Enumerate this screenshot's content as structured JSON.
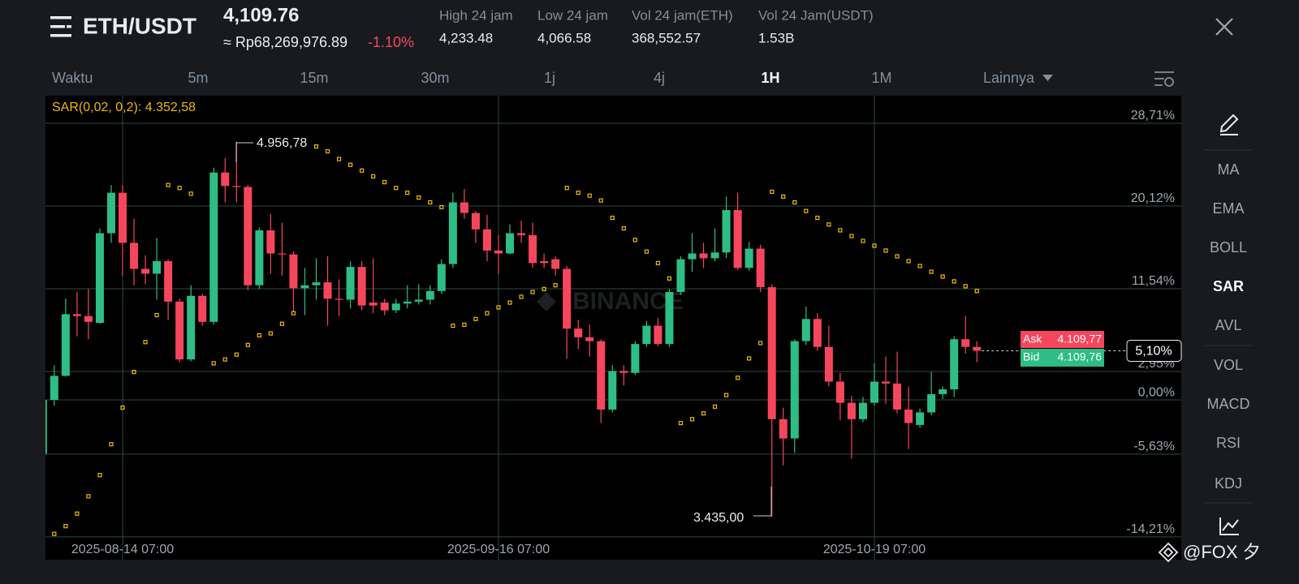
{
  "header": {
    "pair": "ETH/USDT",
    "price": "4,109.76",
    "fiat_price": "≈ Rp68,269,976.89",
    "change": "-1.10%"
  },
  "stats": [
    {
      "label": "High 24 jam",
      "value": "4,233.48"
    },
    {
      "label": "Low 24 jam",
      "value": "4,066.58"
    },
    {
      "label": "Vol 24 jam(ETH)",
      "value": "368,552.57"
    },
    {
      "label": "Vol 24 Jam(USDT)",
      "value": "1.53B"
    }
  ],
  "intervals": [
    "Waktu",
    "5m",
    "15m",
    "30m",
    "1j",
    "4j",
    "1H",
    "1M",
    "Lainnya"
  ],
  "sidebar": [
    "MA",
    "EMA",
    "BOLL",
    "SAR",
    "AVL",
    "VOL",
    "MACD",
    "RSI",
    "KDJ"
  ],
  "watermark": "BINANCE",
  "footer": "@FOX 夕",
  "chart_data": {
    "type": "candlestick",
    "indicator_label": "SAR(0,02, 0,2): 4.352,58",
    "categories": [
      null,
      null,
      null,
      null,
      null,
      null,
      null,
      "2025-08-14 07:00",
      null,
      null,
      null,
      null,
      null,
      null,
      null,
      null,
      null,
      null,
      null,
      null,
      null,
      null,
      null,
      null,
      null,
      null,
      null,
      null,
      null,
      null,
      null,
      null,
      null,
      null,
      null,
      null,
      null,
      null,
      null,
      null,
      "2025-09-16 07:00",
      null,
      null,
      null,
      null,
      null,
      null,
      null,
      null,
      null,
      null,
      null,
      null,
      null,
      null,
      null,
      null,
      null,
      null,
      null,
      null,
      null,
      null,
      null,
      null,
      null,
      null,
      null,
      null,
      null,
      null,
      null,
      null,
      "2025-10-19 07:00",
      null,
      null,
      null,
      null,
      null,
      null,
      null,
      null,
      null
    ],
    "open": [
      -5.6,
      0,
      2.5,
      8.9,
      8.7,
      8.0,
      17.3,
      21.5,
      16.3,
      13.6,
      13.1,
      14.4,
      10.2,
      4.2,
      10.8,
      8.1,
      23.6,
      22.2,
      22.1,
      11.9,
      17.6,
      15.2,
      15.1,
      11.6,
      11.9,
      12.2,
      10.5,
      10.4,
      13.8,
      10.1,
      10.1,
      9.3,
      10.0,
      10.2,
      10.4,
      11.3,
      14.1,
      20.5,
      19.4,
      17.7,
      15.5,
      15.2,
      17.3,
      17.1,
      14.4,
      14.6,
      13.6,
      7.4,
      6.5,
      6.1,
      -1.0,
      3.0,
      2.8,
      5.8,
      7.7,
      5.8,
      11.2,
      14.6,
      15.2,
      14.7,
      15.3,
      19.7,
      13.7,
      15.7,
      11.7,
      -2.0,
      -4.0,
      6.1,
      8.4,
      5.5,
      1.9,
      -0.3,
      -2.0,
      -0.3,
      1.9,
      1.7,
      -1.0,
      -2.6,
      -1.3,
      0.6,
      1.1,
      6.3,
      5.5
    ],
    "high": [
      0.3,
      3.6,
      10.5,
      11.2,
      11.5,
      17.8,
      22.3,
      22.3,
      18.8,
      15.0,
      16.8,
      14.6,
      10.5,
      11.9,
      11.0,
      24.1,
      25.1,
      26.8,
      22.3,
      17.9,
      19.3,
      18.4,
      15.4,
      13.7,
      14.7,
      14.9,
      12.5,
      14.4,
      14.4,
      14.7,
      10.5,
      10.5,
      11.9,
      12.0,
      11.9,
      14.6,
      21.5,
      21.9,
      19.6,
      19.2,
      17.1,
      18.2,
      18.6,
      18.4,
      15.2,
      14.9,
      13.9,
      8.3,
      7.8,
      6.3,
      3.6,
      3.6,
      6.1,
      8.2,
      8.5,
      11.5,
      14.9,
      17.3,
      16.3,
      17.8,
      21.1,
      21.5,
      16.4,
      16.1,
      12.0,
      -0.8,
      6.3,
      9.7,
      9.0,
      7.7,
      2.8,
      0.4,
      0.3,
      3.8,
      4.5,
      5.0,
      1.4,
      -0.9,
      2.9,
      1.4,
      6.6,
      8.7,
      6.1
    ],
    "low": [
      -5.8,
      -0.6,
      2.4,
      6.6,
      6.3,
      7.9,
      16.3,
      12.9,
      11.9,
      12.0,
      10.4,
      8.3,
      3.9,
      4.0,
      7.7,
      7.8,
      20.5,
      20.5,
      11.4,
      11.5,
      13.1,
      12.9,
      9.1,
      8.8,
      10.4,
      7.7,
      8.7,
      9.5,
      9.3,
      9.0,
      8.8,
      9.0,
      9.5,
      9.9,
      9.9,
      11.0,
      13.7,
      18.8,
      16.3,
      14.4,
      13.1,
      15.1,
      16.3,
      13.7,
      13.7,
      12.9,
      4.3,
      5.3,
      4.5,
      -2.4,
      -1.3,
      1.5,
      2.6,
      5.5,
      5.6,
      5.5,
      10.9,
      13.3,
      13.7,
      14.4,
      14.7,
      13.5,
      13.4,
      11.2,
      -12.1,
      -6.8,
      -5.5,
      5.7,
      5.1,
      1.4,
      -2.1,
      -6.1,
      -2.3,
      -0.6,
      -0.4,
      -1.4,
      -5.1,
      -2.9,
      -1.6,
      0.1,
      0.3,
      4.8,
      3.9
    ],
    "close": [
      0,
      2.5,
      8.9,
      8.7,
      8.1,
      17.3,
      21.5,
      16.3,
      13.6,
      13.1,
      14.4,
      10.2,
      4.2,
      10.8,
      8.1,
      23.6,
      22.2,
      22.1,
      11.9,
      17.6,
      15.2,
      15.1,
      11.6,
      11.9,
      12.2,
      10.5,
      10.4,
      13.8,
      9.8,
      9.8,
      9.3,
      10.0,
      10.2,
      10.4,
      11.3,
      14.1,
      20.5,
      19.4,
      17.7,
      15.5,
      15.2,
      17.3,
      17.1,
      14.2,
      14.2,
      13.6,
      7.4,
      6.5,
      6.1,
      -1.0,
      3.0,
      2.8,
      5.8,
      7.7,
      5.8,
      11.2,
      14.6,
      15.2,
      14.7,
      15.3,
      19.7,
      13.7,
      15.7,
      11.7,
      -2.0,
      -4.0,
      6.1,
      8.4,
      5.5,
      1.9,
      -0.3,
      -2.0,
      -0.3,
      1.9,
      1.7,
      -1.0,
      -2.4,
      -1.3,
      0.6,
      1.1,
      6.3,
      5.5,
      5.1
    ],
    "sar_values": [
      null,
      -13.9,
      -13.1,
      -11.8,
      -10.0,
      -7.8,
      -4.6,
      -0.8,
      2.9,
      6.0,
      8.8,
      22.3,
      22.0,
      21.4,
      null,
      3.8,
      4.2,
      4.7,
      5.7,
      6.7,
      6.9,
      7.9,
      9.0,
      null,
      26.3,
      25.8,
      25.0,
      24.4,
      23.8,
      23.2,
      22.6,
      22.0,
      21.5,
      21.0,
      20.5,
      20.0,
      7.7,
      7.8,
      8.4,
      9.0,
      9.6,
      10.1,
      10.7,
      11.2,
      11.5,
      11.9,
      22.0,
      21.5,
      21.2,
      20.7,
      18.9,
      17.8,
      16.6,
      15.4,
      14.2,
      12.6,
      -2.4,
      -2.0,
      -1.4,
      -0.7,
      0.5,
      2.3,
      4.3,
      5.9,
      21.6,
      21.1,
      20.5,
      19.6,
      18.9,
      18.2,
      17.6,
      17.0,
      16.5,
      16.0,
      15.5,
      14.9,
      14.4,
      13.9,
      13.3,
      12.8,
      12.3,
      11.8,
      11.3
    ],
    "up_color": "#2ebd85",
    "down_color": "#f6465d",
    "sar_color": "#f0b90b",
    "ylim": [
      -16.58,
      31.57
    ],
    "yticks": [
      {
        "value": 28.71,
        "label": "28,71%"
      },
      {
        "value": 20.12,
        "label": "20,12%"
      },
      {
        "value": 11.54,
        "label": "11,54%"
      },
      {
        "value": 2.95,
        "label": "2,95%"
      },
      {
        "value": 0,
        "label": "0,00%"
      },
      {
        "value": -5.63,
        "label": "-5,63%"
      },
      {
        "value": -14.21,
        "label": "-14,21%"
      }
    ],
    "grid": true,
    "last_value": {
      "value": 5.1,
      "label": "5,10%"
    },
    "high_label": "4.956,78",
    "low_label": "3.435,00",
    "ask": {
      "label": "Ask",
      "price": "4.109,77"
    },
    "bid": {
      "label": "Bid",
      "price": "4.109,76"
    }
  }
}
